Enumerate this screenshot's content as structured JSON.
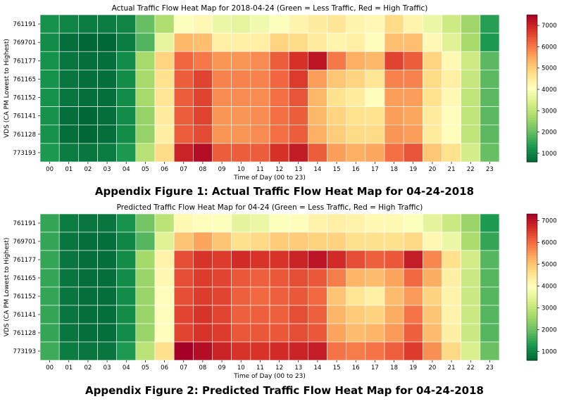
{
  "figures": [
    {
      "caption": "Appendix Figure 1: Actual Traffic Flow Heat Map for 04-24-2018"
    },
    {
      "caption": "Appendix Figure 2: Predicted Traffic Flow Heat Map for 04-24-2018"
    }
  ],
  "chart_data": [
    {
      "type": "heatmap",
      "title": "Actual Traffic Flow Heat Map for 2018-04-24 (Green = Less Traffic, Red = High Traffic)",
      "xlabel": "Time of Day (00 to 23)",
      "ylabel": "VDS (CA PM Lowest to Highest)",
      "x": [
        "00",
        "01",
        "02",
        "03",
        "04",
        "05",
        "06",
        "07",
        "08",
        "09",
        "10",
        "11",
        "12",
        "13",
        "14",
        "15",
        "16",
        "17",
        "18",
        "19",
        "20",
        "21",
        "22",
        "23"
      ],
      "y": [
        "761191",
        "769701",
        "761177",
        "761165",
        "761152",
        "761141",
        "761128",
        "773193"
      ],
      "colormap": "RdYlGn_r",
      "vmin": 600,
      "vmax": 7500,
      "colorbar_ticks": [
        1000,
        2000,
        3000,
        4000,
        5000,
        6000,
        7000
      ],
      "values": [
        [
          1200,
          1000,
          900,
          900,
          1000,
          2000,
          2800,
          4000,
          4200,
          3700,
          3600,
          3800,
          4000,
          4300,
          4500,
          4600,
          4300,
          4200,
          4800,
          4300,
          3700,
          3200,
          2600,
          1400
        ],
        [
          1100,
          700,
          600,
          600,
          900,
          1800,
          3600,
          5300,
          5200,
          4400,
          4400,
          4400,
          4900,
          4800,
          4500,
          4300,
          4400,
          4100,
          5200,
          5200,
          4200,
          3500,
          2700,
          1300
        ],
        [
          1200,
          800,
          700,
          700,
          1100,
          2700,
          4900,
          6200,
          6000,
          5700,
          5700,
          5800,
          6300,
          6800,
          7200,
          6000,
          5400,
          5300,
          6600,
          6300,
          4900,
          4200,
          3200,
          1900
        ],
        [
          1200,
          800,
          700,
          700,
          1100,
          2700,
          4700,
          6300,
          6600,
          5900,
          5900,
          5900,
          6200,
          6700,
          5600,
          5100,
          4900,
          4600,
          5900,
          5900,
          4800,
          4400,
          3100,
          1900
        ],
        [
          1200,
          800,
          700,
          700,
          1100,
          2700,
          4600,
          6300,
          6600,
          5800,
          5800,
          5800,
          6100,
          6400,
          5300,
          4700,
          4500,
          4100,
          5600,
          5600,
          4700,
          4200,
          3000,
          1900
        ],
        [
          1200,
          700,
          600,
          700,
          1100,
          2500,
          4500,
          6300,
          6600,
          5700,
          5700,
          5800,
          6100,
          6300,
          5300,
          4900,
          4700,
          4700,
          5600,
          5500,
          4500,
          4100,
          3000,
          1900
        ],
        [
          1200,
          700,
          600,
          700,
          1100,
          2500,
          4400,
          6300,
          6500,
          5700,
          5700,
          5800,
          6100,
          6300,
          5400,
          5000,
          4800,
          4800,
          5700,
          5600,
          4500,
          4100,
          3000,
          1900
        ],
        [
          1300,
          900,
          800,
          900,
          1300,
          2900,
          4800,
          7000,
          7300,
          6300,
          6300,
          6300,
          6800,
          7100,
          6300,
          5600,
          5400,
          5500,
          6100,
          6400,
          5100,
          4700,
          3300,
          2000
        ]
      ]
    },
    {
      "type": "heatmap",
      "title": "Predicted Traffic Flow Heat Map for 04-24 (Green = Less Traffic, Red = High Traffic)",
      "xlabel": "Time of Day (00 to 23)",
      "ylabel": "VDS (CA PM Lowest to Highest)",
      "x": [
        "00",
        "01",
        "02",
        "03",
        "04",
        "05",
        "06",
        "07",
        "08",
        "09",
        "10",
        "11",
        "12",
        "13",
        "14",
        "15",
        "16",
        "17",
        "18",
        "19",
        "20",
        "21",
        "22",
        "23"
      ],
      "y": [
        "761191",
        "769701",
        "761177",
        "761165",
        "761152",
        "761141",
        "761128",
        "773193"
      ],
      "colormap": "RdYlGn_r",
      "vmin": 600,
      "vmax": 7300,
      "colorbar_ticks": [
        1000,
        2000,
        3000,
        4000,
        5000,
        6000,
        7000
      ],
      "values": [
        [
          1500,
          900,
          800,
          800,
          1200,
          2100,
          2900,
          4100,
          4000,
          3900,
          3500,
          3600,
          3900,
          4000,
          4200,
          4300,
          4200,
          4100,
          4100,
          3900,
          3500,
          3100,
          2500,
          1300
        ],
        [
          1500,
          800,
          700,
          700,
          1000,
          1800,
          3400,
          5000,
          5400,
          5000,
          4600,
          4700,
          4900,
          4900,
          4800,
          4800,
          4600,
          4600,
          4600,
          4700,
          4100,
          3600,
          2700,
          1500
        ],
        [
          1500,
          800,
          700,
          700,
          1100,
          2600,
          4200,
          6300,
          6600,
          6500,
          6700,
          6600,
          6600,
          6800,
          7000,
          6700,
          6300,
          6100,
          6200,
          6900,
          5700,
          4600,
          3200,
          1800
        ],
        [
          1500,
          800,
          700,
          700,
          1100,
          2500,
          4100,
          6300,
          6500,
          6400,
          6200,
          6100,
          6200,
          6300,
          6200,
          5800,
          5200,
          5100,
          5400,
          6000,
          5300,
          4300,
          3100,
          1800
        ],
        [
          1500,
          800,
          700,
          700,
          1100,
          2500,
          4000,
          6300,
          6500,
          6400,
          6100,
          6000,
          6100,
          6200,
          6000,
          5000,
          4500,
          4300,
          5100,
          5500,
          4800,
          4200,
          3100,
          1800
        ],
        [
          1500,
          800,
          700,
          700,
          1100,
          2500,
          4000,
          6400,
          6600,
          6400,
          6100,
          6100,
          6100,
          6300,
          6100,
          5200,
          4900,
          4800,
          5300,
          5900,
          5000,
          4200,
          3100,
          1800
        ],
        [
          1500,
          800,
          700,
          700,
          1100,
          2500,
          4000,
          6400,
          6600,
          6500,
          6200,
          6200,
          6200,
          6300,
          6200,
          5400,
          5100,
          5200,
          5500,
          6100,
          5100,
          4300,
          3100,
          1800
        ],
        [
          1600,
          900,
          800,
          800,
          1300,
          2900,
          4600,
          7300,
          7100,
          6800,
          6600,
          6600,
          6700,
          6800,
          6900,
          5900,
          5800,
          5900,
          6100,
          6500,
          5600,
          4700,
          3300,
          2000
        ]
      ]
    }
  ]
}
